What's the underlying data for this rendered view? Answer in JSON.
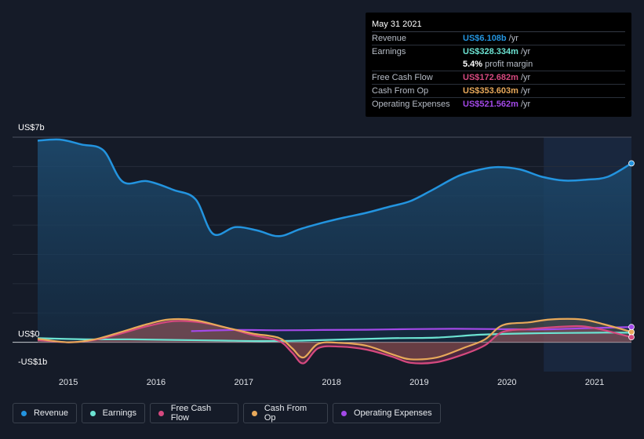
{
  "tooltip": {
    "date": "May 31 2021",
    "rows": [
      {
        "label": "Revenue",
        "value": "US$6.108b",
        "unit": "/yr",
        "color": "#2394df"
      },
      {
        "label": "Earnings",
        "value": "US$328.334m",
        "unit": "/yr",
        "color": "#6ce3d2"
      },
      {
        "label": "",
        "value": "5.4%",
        "unit": "profit margin",
        "color": "#ffffff"
      },
      {
        "label": "Free Cash Flow",
        "value": "US$172.682m",
        "unit": "/yr",
        "color": "#d6497f"
      },
      {
        "label": "Cash From Op",
        "value": "US$353.603m",
        "unit": "/yr",
        "color": "#e8a95a"
      },
      {
        "label": "Operating Expenses",
        "value": "US$521.562m",
        "unit": "/yr",
        "color": "#a349e8"
      }
    ]
  },
  "chart_data": {
    "type": "line",
    "title": "",
    "ylabel_top": "US$7b",
    "ylabel_zero": "US$0",
    "ylabel_bottom": "-US$1b",
    "ylim": [
      -1.0,
      7.0
    ],
    "xlim": [
      2014.65,
      2021.42
    ],
    "x_ticks": [
      {
        "value": 2015,
        "label": "2015"
      },
      {
        "value": 2016,
        "label": "2016"
      },
      {
        "value": 2017,
        "label": "2017"
      },
      {
        "value": 2018,
        "label": "2018"
      },
      {
        "value": 2019,
        "label": "2019"
      },
      {
        "value": 2020,
        "label": "2020"
      },
      {
        "value": 2021,
        "label": "2021"
      }
    ],
    "highlight_start": 2020.42,
    "series": [
      {
        "name": "Revenue",
        "color": "#2394df",
        "fill": true,
        "points": [
          [
            2014.65,
            6.88
          ],
          [
            2014.9,
            6.92
          ],
          [
            2015.15,
            6.75
          ],
          [
            2015.4,
            6.55
          ],
          [
            2015.62,
            5.48
          ],
          [
            2015.9,
            5.5
          ],
          [
            2016.2,
            5.2
          ],
          [
            2016.45,
            4.88
          ],
          [
            2016.65,
            3.7
          ],
          [
            2016.9,
            3.93
          ],
          [
            2017.15,
            3.82
          ],
          [
            2017.4,
            3.62
          ],
          [
            2017.65,
            3.87
          ],
          [
            2017.9,
            4.08
          ],
          [
            2018.15,
            4.26
          ],
          [
            2018.4,
            4.42
          ],
          [
            2018.65,
            4.62
          ],
          [
            2018.9,
            4.82
          ],
          [
            2019.15,
            5.2
          ],
          [
            2019.45,
            5.68
          ],
          [
            2019.7,
            5.9
          ],
          [
            2019.9,
            5.98
          ],
          [
            2020.15,
            5.9
          ],
          [
            2020.4,
            5.65
          ],
          [
            2020.65,
            5.52
          ],
          [
            2020.9,
            5.55
          ],
          [
            2021.15,
            5.65
          ],
          [
            2021.42,
            6.108
          ]
        ]
      },
      {
        "name": "Earnings",
        "color": "#6ce3d2",
        "fill": false,
        "points": [
          [
            2014.65,
            0.14
          ],
          [
            2015.2,
            0.1
          ],
          [
            2015.7,
            0.1
          ],
          [
            2016.2,
            0.08
          ],
          [
            2016.7,
            0.06
          ],
          [
            2017.2,
            0.04
          ],
          [
            2017.7,
            0.06
          ],
          [
            2018.2,
            0.1
          ],
          [
            2018.7,
            0.14
          ],
          [
            2019.2,
            0.16
          ],
          [
            2019.7,
            0.26
          ],
          [
            2020.2,
            0.3
          ],
          [
            2020.7,
            0.32
          ],
          [
            2021.1,
            0.33
          ],
          [
            2021.42,
            0.328
          ]
        ]
      },
      {
        "name": "Free Cash Flow",
        "color": "#d6497f",
        "fill": true,
        "points": [
          [
            2014.65,
            0.08
          ],
          [
            2015.0,
            0.0
          ],
          [
            2015.3,
            0.08
          ],
          [
            2015.6,
            0.3
          ],
          [
            2015.9,
            0.55
          ],
          [
            2016.2,
            0.72
          ],
          [
            2016.5,
            0.68
          ],
          [
            2016.8,
            0.5
          ],
          [
            2017.1,
            0.25
          ],
          [
            2017.4,
            0.05
          ],
          [
            2017.55,
            -0.35
          ],
          [
            2017.68,
            -0.72
          ],
          [
            2017.85,
            -0.2
          ],
          [
            2018.1,
            -0.15
          ],
          [
            2018.4,
            -0.25
          ],
          [
            2018.7,
            -0.5
          ],
          [
            2018.9,
            -0.7
          ],
          [
            2019.2,
            -0.68
          ],
          [
            2019.5,
            -0.42
          ],
          [
            2019.75,
            -0.1
          ],
          [
            2019.95,
            0.35
          ],
          [
            2020.25,
            0.45
          ],
          [
            2020.55,
            0.52
          ],
          [
            2020.85,
            0.55
          ],
          [
            2021.1,
            0.42
          ],
          [
            2021.42,
            0.173
          ]
        ]
      },
      {
        "name": "Cash From Op",
        "color": "#e8a95a",
        "fill": true,
        "points": [
          [
            2014.65,
            0.12
          ],
          [
            2015.0,
            0.0
          ],
          [
            2015.3,
            0.1
          ],
          [
            2015.6,
            0.35
          ],
          [
            2015.9,
            0.62
          ],
          [
            2016.15,
            0.78
          ],
          [
            2016.45,
            0.75
          ],
          [
            2016.8,
            0.5
          ],
          [
            2017.1,
            0.3
          ],
          [
            2017.4,
            0.15
          ],
          [
            2017.55,
            -0.2
          ],
          [
            2017.68,
            -0.52
          ],
          [
            2017.85,
            -0.05
          ],
          [
            2018.1,
            -0.02
          ],
          [
            2018.4,
            -0.12
          ],
          [
            2018.7,
            -0.42
          ],
          [
            2018.9,
            -0.58
          ],
          [
            2019.2,
            -0.52
          ],
          [
            2019.5,
            -0.2
          ],
          [
            2019.75,
            0.1
          ],
          [
            2019.95,
            0.58
          ],
          [
            2020.25,
            0.68
          ],
          [
            2020.5,
            0.78
          ],
          [
            2020.85,
            0.78
          ],
          [
            2021.1,
            0.62
          ],
          [
            2021.42,
            0.354
          ]
        ]
      },
      {
        "name": "Operating Expenses",
        "color": "#a349e8",
        "fill": false,
        "points": [
          [
            2016.4,
            0.38
          ],
          [
            2016.9,
            0.42
          ],
          [
            2017.4,
            0.41
          ],
          [
            2017.9,
            0.42
          ],
          [
            2018.4,
            0.43
          ],
          [
            2018.9,
            0.45
          ],
          [
            2019.4,
            0.46
          ],
          [
            2019.9,
            0.45
          ],
          [
            2020.4,
            0.44
          ],
          [
            2020.9,
            0.48
          ],
          [
            2021.42,
            0.522
          ]
        ]
      }
    ],
    "legend": [
      "Revenue",
      "Earnings",
      "Free Cash Flow",
      "Cash From Op",
      "Operating Expenses"
    ]
  }
}
